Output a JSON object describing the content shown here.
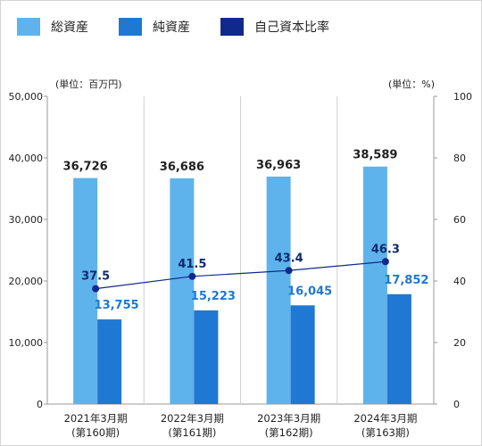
{
  "legend": [
    {
      "label": "総資産",
      "color": "#5eb3ec"
    },
    {
      "label": "純資産",
      "color": "#1f78d1"
    },
    {
      "label": "自己資本比率",
      "color": "#0f2a8c"
    }
  ],
  "chart_data": {
    "type": "bar",
    "categories": [
      [
        "2021年3月期",
        "(第160期)"
      ],
      [
        "2022年3月期",
        "(第161期)"
      ],
      [
        "2023年3月期",
        "(第162期)"
      ],
      [
        "2024年3月期",
        "(第163期)"
      ]
    ],
    "series": [
      {
        "name": "総資産",
        "type": "bar",
        "axis": "left",
        "values": [
          36726,
          36686,
          36963,
          38589
        ],
        "labels": [
          "36,726",
          "36,686",
          "36,963",
          "38,589"
        ],
        "color": "#5eb3ec"
      },
      {
        "name": "純資産",
        "type": "bar",
        "axis": "left",
        "values": [
          13755,
          15223,
          16045,
          17852
        ],
        "labels": [
          "13,755",
          "15,223",
          "16,045",
          "17,852"
        ],
        "color": "#1f78d1"
      },
      {
        "name": "自己資本比率",
        "type": "line",
        "axis": "right",
        "values": [
          37.5,
          41.5,
          43.4,
          46.3
        ],
        "labels": [
          "37.5",
          "41.5",
          "43.4",
          "46.3"
        ],
        "color": "#0f2a8c"
      }
    ],
    "left_axis": {
      "unit": "(単位：百万円)",
      "range": [
        0,
        50000
      ],
      "ticks": [
        "0",
        "10,000",
        "20,000",
        "30,000",
        "40,000",
        "50,000"
      ]
    },
    "right_axis": {
      "unit": "(単位：%)",
      "range": [
        0,
        100
      ],
      "ticks": [
        "0",
        "20",
        "40",
        "60",
        "80",
        "100"
      ]
    },
    "grid": {
      "vertical_separators": true,
      "horizontal": false
    },
    "legend_position": "top-left"
  }
}
